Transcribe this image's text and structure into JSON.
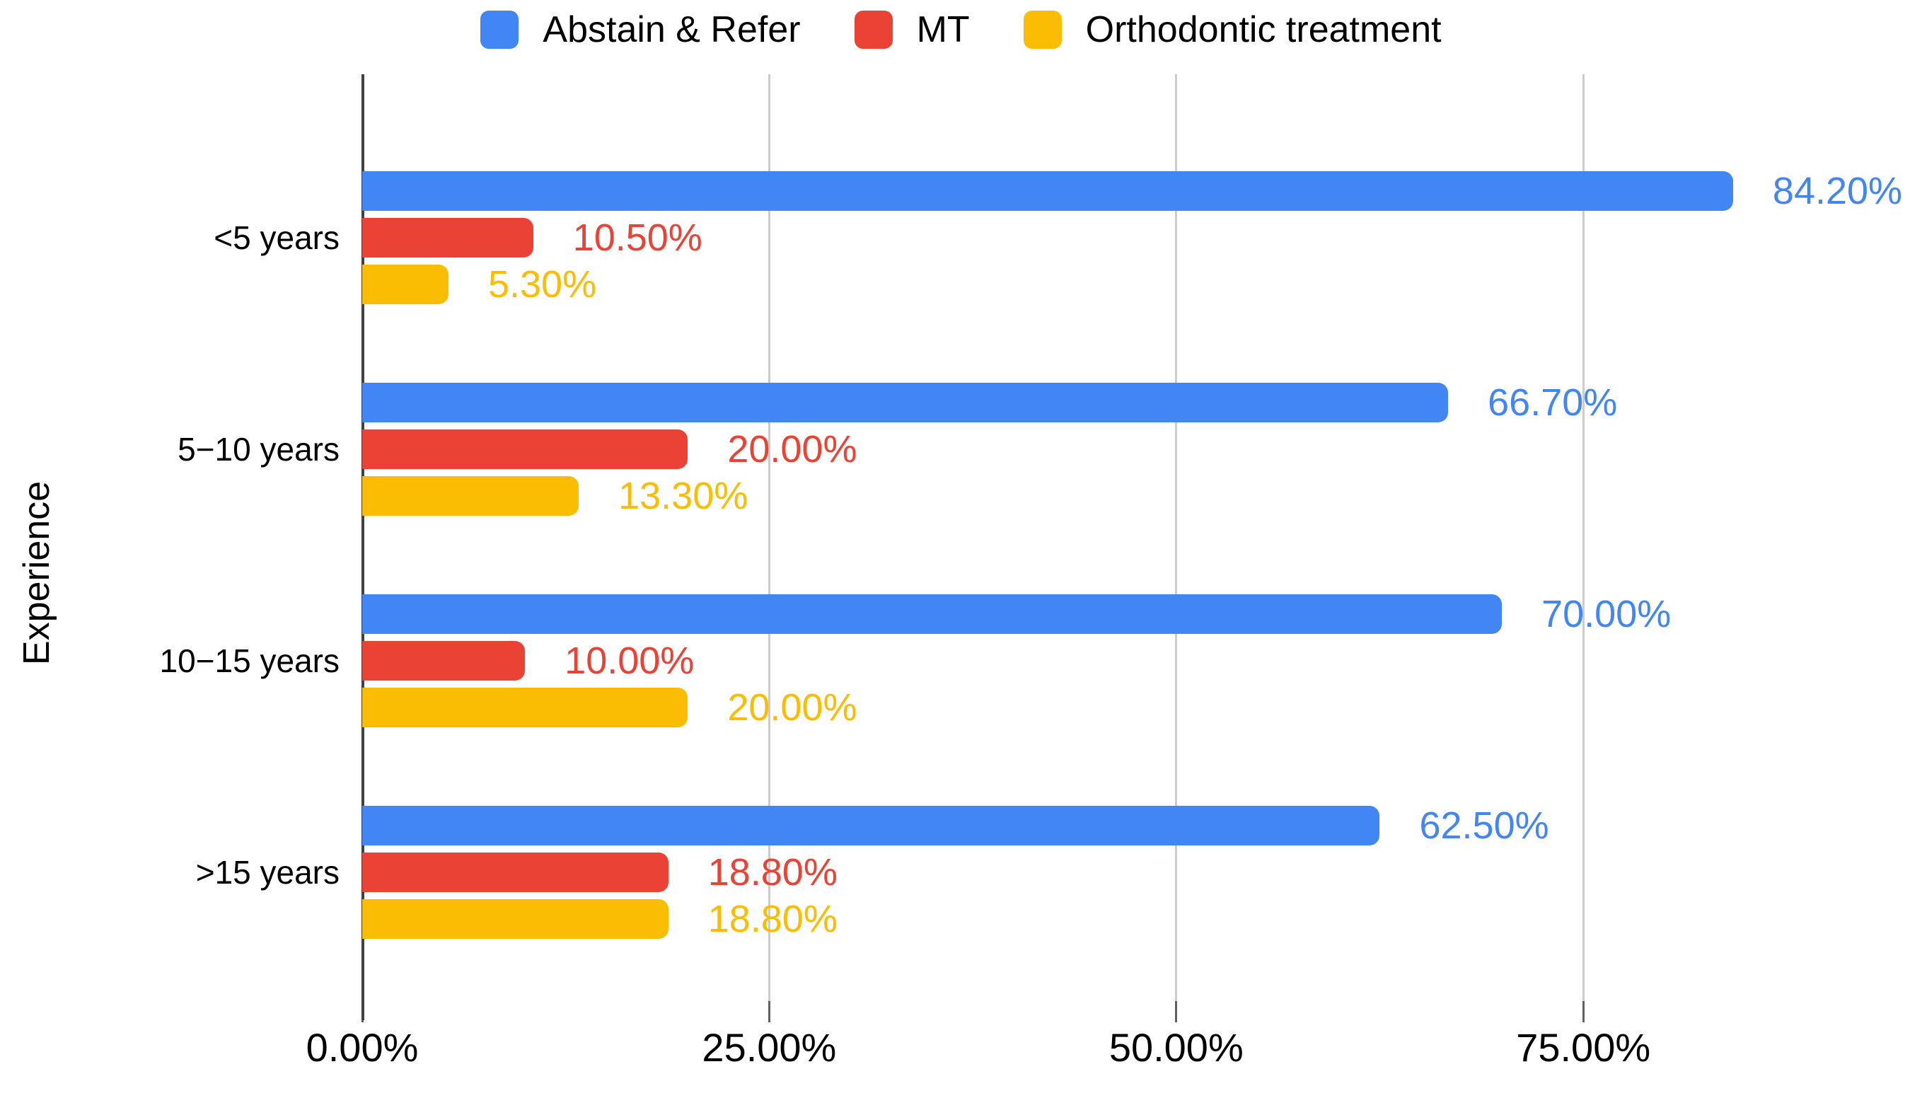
{
  "chart_data": {
    "type": "bar",
    "orientation": "horizontal",
    "title": "",
    "xlabel": "",
    "ylabel": "Experience",
    "background": "#ffffff",
    "grid": true,
    "legend_position": "top",
    "categories": [
      "<5 years",
      "5−10 years",
      "10−15 years",
      ">15 years"
    ],
    "series": [
      {
        "name": "Abstain & Refer",
        "color": "#4285F4",
        "values": [
          84.2,
          66.7,
          70.0,
          62.5
        ],
        "data_labels": [
          "84.20%",
          "66.70%",
          "70.00%",
          "62.50%"
        ]
      },
      {
        "name": "MT",
        "color": "#EA4335",
        "values": [
          10.5,
          20.0,
          10.0,
          18.8
        ],
        "data_labels": [
          "10.50%",
          "20.00%",
          "10.00%",
          "18.80%"
        ]
      },
      {
        "name": "Orthodontic treatment",
        "color": "#FBBC04",
        "values": [
          5.3,
          13.3,
          20.0,
          18.8
        ],
        "data_labels": [
          "5.30%",
          "13.30%",
          "20.00%",
          "18.80%"
        ]
      }
    ],
    "x_axis": {
      "tick_labels": [
        "0.00%",
        "25.00%",
        "50.00%",
        "75.00%"
      ],
      "tick_values": [
        0,
        25,
        50,
        75
      ],
      "min": 0,
      "max": 95.5
    },
    "axis_colors": {
      "axis_line": "#424242",
      "gridline": "#cccccc",
      "tick": "#616161"
    }
  }
}
